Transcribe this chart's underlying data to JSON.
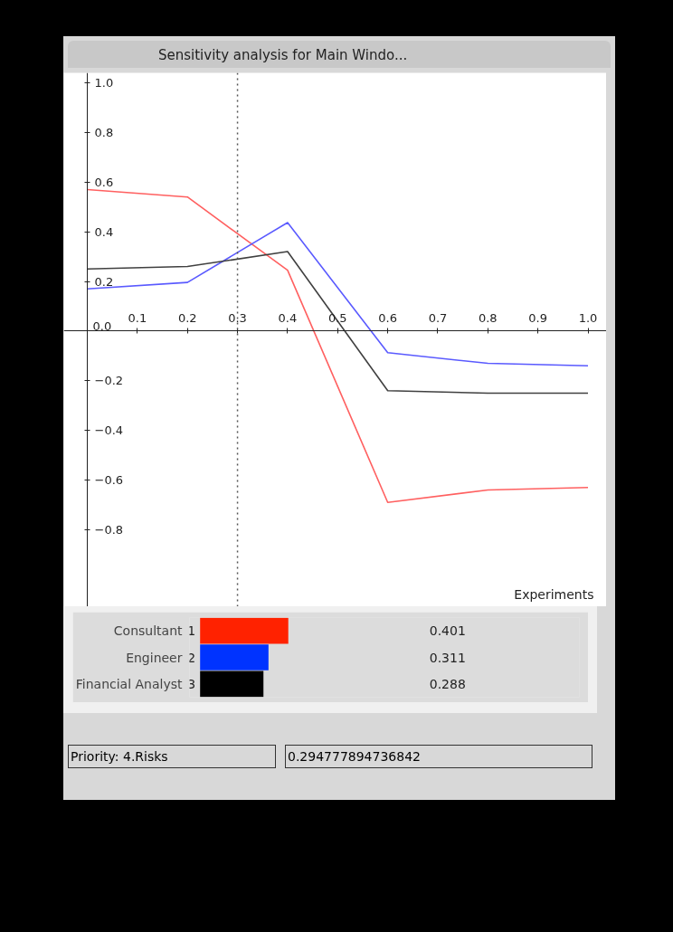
{
  "chart_data": [
    {
      "type": "line",
      "title": "Sensitivity analysis for Main Windo...",
      "xlabel": "Experiments",
      "x": [
        0,
        0.2,
        0.4,
        0.6,
        0.8,
        1.0
      ],
      "series": [
        {
          "color": "#ff6060",
          "values": [
            0.57,
            0.54,
            0.245,
            -0.69,
            -0.64,
            -0.63
          ]
        },
        {
          "color": "#5a5aff",
          "values": [
            0.17,
            0.196,
            0.437,
            -0.087,
            -0.13,
            -0.14
          ]
        },
        {
          "color": "#404040",
          "values": [
            0.25,
            0.26,
            0.32,
            -0.24,
            -0.25,
            -0.25
          ]
        }
      ],
      "xlim": [
        -0.047,
        1.037
      ],
      "ylim": [
        -1.11,
        1.04
      ],
      "xticks": [
        0.1,
        0.2,
        0.3,
        0.4,
        0.5,
        0.6,
        0.7,
        0.8,
        0.9,
        {
          "value": 1,
          "label": "1.0"
        }
      ],
      "yticks": [
        -0.8,
        -0.6,
        -0.4,
        -0.2,
        {
          "value": 0,
          "label": "0.0"
        },
        0.2,
        0.4,
        0.6,
        0.8,
        {
          "value": 1,
          "label": "1.0"
        }
      ],
      "ref_lines": [
        {
          "axis": "x",
          "value": 0.3,
          "line_style": "dotted",
          "color": "#555555"
        }
      ],
      "grid": false,
      "marker": "none",
      "line_style": "solid"
    },
    {
      "type": "bar",
      "orientation": "horizontal",
      "categories": [
        "Consultant",
        "Engineer",
        "Financial Analyst"
      ],
      "values": [
        0.401,
        0.311,
        0.288
      ],
      "colors": [
        "#ff2200",
        "#0033ff",
        "#000000"
      ],
      "data_labels": true,
      "tick_labels": "y",
      "annotations": [
        "1",
        "2",
        "3",
        "Priority: 4.Risks",
        "0.294777894736842"
      ]
    }
  ]
}
